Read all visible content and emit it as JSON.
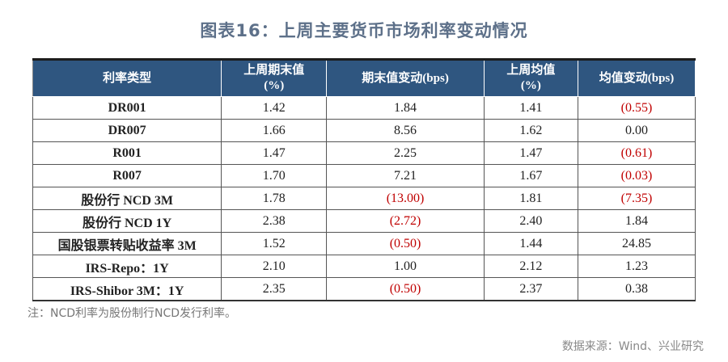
{
  "title": "图表16：上周主要货币市场利率变动情况",
  "table": {
    "headers": [
      "利率类型",
      "上周期末值\n(%)",
      "期末值变动(bps)",
      "上周均值\n(%)",
      "均值变动(bps)"
    ],
    "rows": [
      [
        "DR001",
        "1.42",
        "1.84",
        "1.41",
        "(0.55)"
      ],
      [
        "DR007",
        "1.66",
        "8.56",
        "1.62",
        "0.00"
      ],
      [
        "R001",
        "1.47",
        "2.25",
        "1.47",
        "(0.61)"
      ],
      [
        "R007",
        "1.70",
        "7.21",
        "1.67",
        "(0.03)"
      ],
      [
        "股份行 NCD 3M",
        "1.78",
        "(13.00)",
        "1.81",
        "(7.35)"
      ],
      [
        "股份行 NCD 1Y",
        "2.38",
        "(2.72)",
        "2.40",
        "1.84"
      ],
      [
        "国股银票转贴收益率 3M",
        "1.52",
        "(0.50)",
        "1.44",
        "24.85"
      ],
      [
        "IRS-Repo：1Y",
        "2.10",
        "1.00",
        "2.12",
        "1.23"
      ],
      [
        "IRS-Shibor 3M：1Y",
        "2.35",
        "(0.50)",
        "2.37",
        "0.38"
      ]
    ]
  },
  "note": "注：NCD利率为股份制行NCD发行利率。",
  "source": "数据来源：Wind、兴业研究",
  "colors": {
    "header_bg": "#2f5680",
    "negative": "#c00000",
    "title": "#5d7089"
  }
}
